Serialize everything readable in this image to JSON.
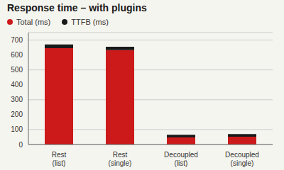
{
  "chart_data": {
    "type": "bar",
    "title": "Response time – with plugins",
    "categories": [
      "Rest\n(list)",
      "Rest\n(single)",
      "Decoupled\n(list)",
      "Decoupled\n(single)"
    ],
    "series": [
      {
        "name": "Total (ms)",
        "color": "#cc1a1a",
        "values": [
          645,
          632,
          48,
          52
        ]
      },
      {
        "name": "TTFB (ms)",
        "color": "#1a1a1a",
        "values": [
          25,
          23,
          17,
          18
        ]
      }
    ],
    "stacked": true,
    "ylim": [
      0,
      750
    ],
    "yticks": [
      0,
      100,
      200,
      300,
      400,
      500,
      600,
      700
    ],
    "grid": true,
    "legend": "upper left"
  }
}
